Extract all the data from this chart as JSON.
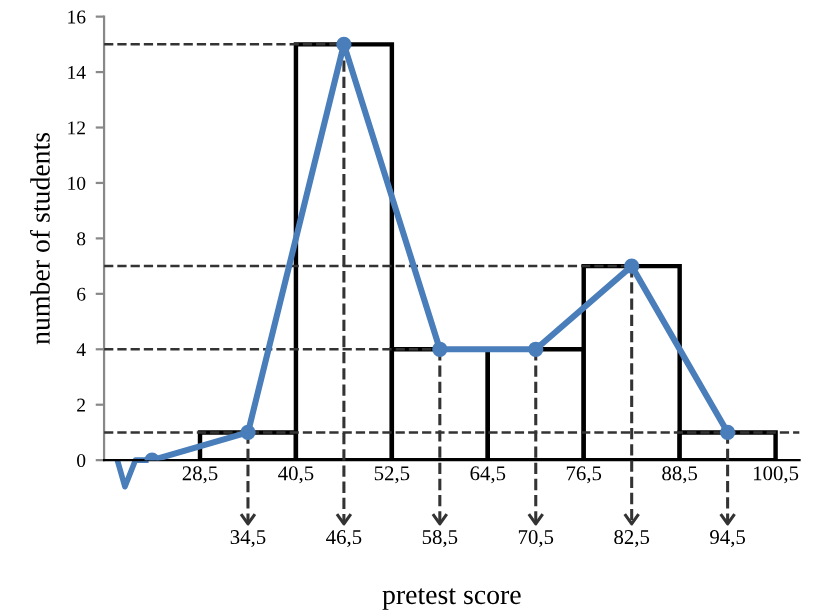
{
  "chart_data": {
    "type": "histogram",
    "xlabel": "pretest score",
    "ylabel": "number of students",
    "series": [
      {
        "bins": [
          28.5,
          40.5,
          52.5,
          64.5,
          76.5,
          88.5,
          100.5
        ],
        "values": [
          1,
          15,
          4,
          4,
          7,
          1
        ],
        "color": "#000000"
      },
      {
        "type": "line",
        "x": [
          22.5,
          34.5,
          46.5,
          58.5,
          70.5,
          82.5,
          94.5
        ],
        "values": [
          0,
          1,
          15,
          4,
          4,
          7,
          1
        ],
        "color": "#4a7ebb",
        "marker": "circle"
      }
    ],
    "xlim": [
      16.5,
      103.5
    ],
    "ylim": [
      0,
      16
    ],
    "xticks": [
      {
        "value": 28.5,
        "label": "28,5"
      },
      {
        "value": 40.5,
        "label": "40,5"
      },
      {
        "value": 52.5,
        "label": "52,5"
      },
      {
        "value": 64.5,
        "label": "64,5"
      },
      {
        "value": 76.5,
        "label": "76,5"
      },
      {
        "value": 88.5,
        "label": "88,5"
      },
      {
        "value": 100.5,
        "label": "100,5"
      }
    ],
    "yticks": [
      0,
      2,
      4,
      6,
      8,
      10,
      12,
      14,
      16
    ],
    "ref_lines": [
      {
        "axis": "y",
        "value": 1,
        "line_style": "dashed"
      },
      {
        "axis": "y",
        "value": 4,
        "line_style": "dashed"
      },
      {
        "axis": "y",
        "value": 7,
        "line_style": "dashed"
      },
      {
        "axis": "y",
        "value": 15,
        "line_style": "dashed"
      },
      {
        "axis": "x",
        "value": 34.5,
        "label": "34,5",
        "line_style": "dashed"
      },
      {
        "axis": "x",
        "value": 46.5,
        "label": "46,5",
        "line_style": "dashed"
      },
      {
        "axis": "x",
        "value": 58.5,
        "label": "58,5",
        "line_style": "dashed"
      },
      {
        "axis": "x",
        "value": 70.5,
        "label": "70,5",
        "line_style": "dashed"
      },
      {
        "axis": "x",
        "value": 82.5,
        "label": "82,5",
        "line_style": "dashed"
      },
      {
        "axis": "x",
        "value": 94.5,
        "label": "94,5",
        "line_style": "dashed"
      }
    ],
    "grid": false
  }
}
